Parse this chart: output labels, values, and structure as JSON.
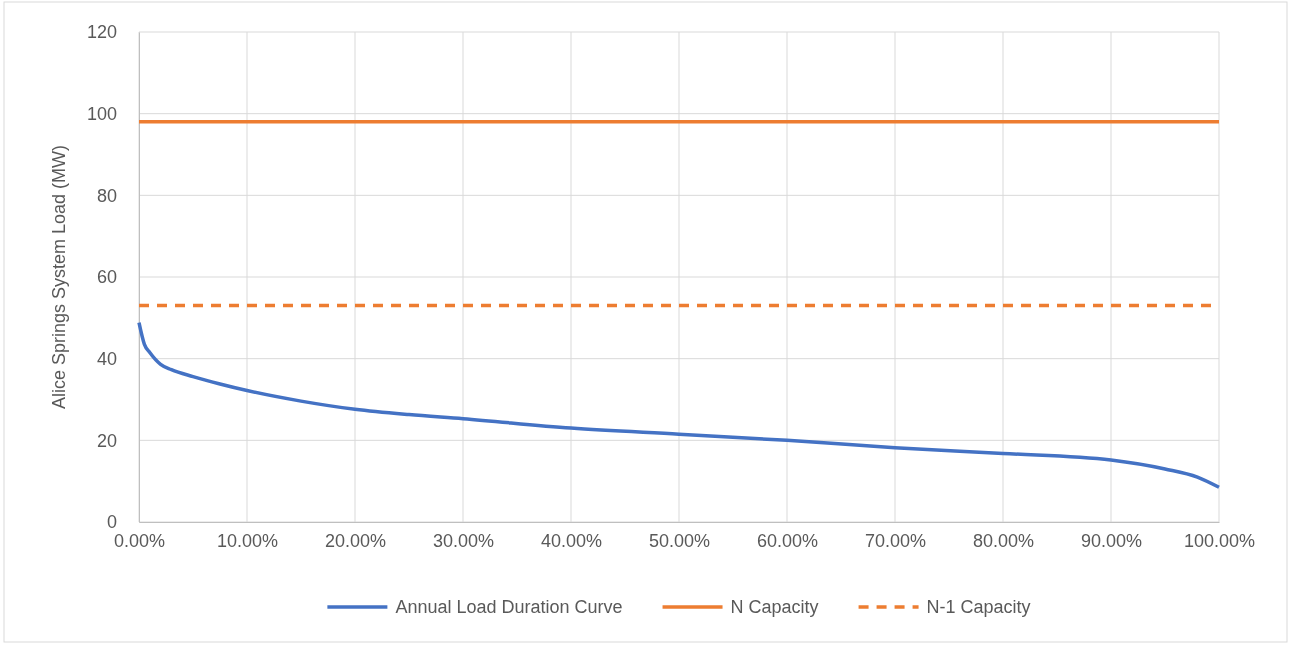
{
  "chart_data": {
    "type": "line",
    "ylabel": "Alice Springs System Load (MW)",
    "xlim": [
      0,
      100
    ],
    "xticks": [
      {
        "value": 0,
        "label": "0.00%"
      },
      {
        "value": 10,
        "label": "10.00%"
      },
      {
        "value": 20,
        "label": "20.00%"
      },
      {
        "value": 30,
        "label": "30.00%"
      },
      {
        "value": 40,
        "label": "40.00%"
      },
      {
        "value": 50,
        "label": "50.00%"
      },
      {
        "value": 60,
        "label": "60.00%"
      },
      {
        "value": 70,
        "label": "70.00%"
      },
      {
        "value": 80,
        "label": "80.00%"
      },
      {
        "value": 90,
        "label": "90.00%"
      },
      {
        "value": 100,
        "label": "100.00%"
      }
    ],
    "ylim": [
      0,
      120
    ],
    "yticks": [
      0,
      20,
      40,
      60,
      80,
      100,
      120
    ],
    "grid": true,
    "legend": "bottom",
    "marker": "none",
    "series": [
      {
        "name": "Annual Load Duration Curve",
        "color": "#4472c4",
        "line_style": "solid",
        "x": [
          0,
          0.5,
          1,
          2,
          3,
          5,
          7.5,
          10,
          15,
          20,
          25,
          30,
          40,
          50,
          60,
          70,
          80,
          90,
          95,
          98,
          100
        ],
        "values": [
          48.8,
          43.5,
          41.5,
          38.6,
          37.3,
          35.6,
          33.8,
          32.2,
          29.6,
          27.6,
          26.3,
          25.3,
          23,
          21.5,
          20,
          18.2,
          16.8,
          15.2,
          13,
          11,
          8.5
        ]
      },
      {
        "name": "N Capacity",
        "color": "#ed7d31",
        "line_style": "solid",
        "x": [
          0,
          100
        ],
        "values": [
          98,
          98
        ]
      },
      {
        "name": "N-1 Capacity",
        "color": "#ed7d31",
        "line_style": "dashed",
        "x": [
          0,
          100
        ],
        "values": [
          53,
          53
        ]
      }
    ]
  }
}
